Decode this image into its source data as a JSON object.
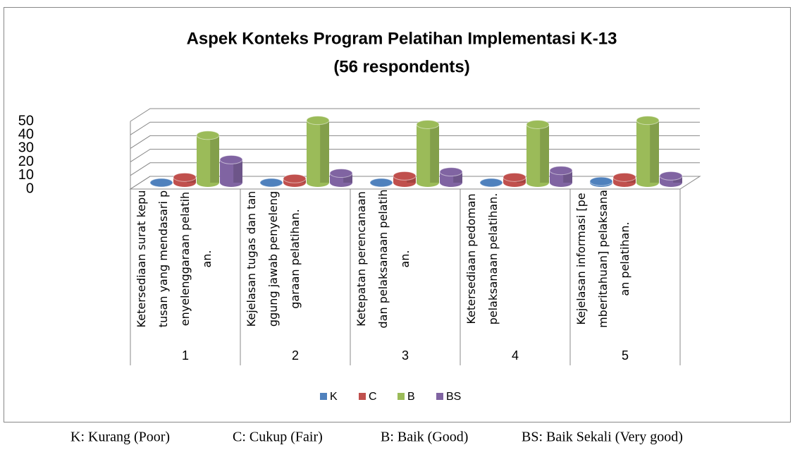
{
  "chart_data": {
    "type": "bar3d",
    "title": "Aspek Konteks Program Pelatihan Implementasi K-13",
    "subtitle": "(56 respondents)",
    "groups": [
      "1",
      "2",
      "3",
      "4",
      "5"
    ],
    "categories": [
      "Ketersediaan surat keputusan yang mendasari penyelenggaraan pelatihan.",
      "Kejelasan tugas dan tanggung jawab penyelenggaraan pelatihan.",
      "Ketepatan perencanaan dan pelaksanaan pelatihan.",
      "Ketersediaan pedoman pelaksanaan pelatihan.",
      "Kejelasan informasi [pemberitahuan] pelaksanaan pelatihan."
    ],
    "series": [
      {
        "name": "K",
        "color": "#4f81bd",
        "values": [
          0,
          0,
          0,
          0,
          1
        ]
      },
      {
        "name": "C",
        "color": "#c0504d",
        "values": [
          4,
          3,
          5,
          4,
          4
        ]
      },
      {
        "name": "B",
        "color": "#9bbb59",
        "values": [
          35,
          46,
          43,
          43,
          46
        ]
      },
      {
        "name": "BS",
        "color": "#8064a2",
        "values": [
          17,
          7,
          8,
          9,
          5
        ]
      }
    ],
    "ylim": [
      0,
      50
    ],
    "yticks": [
      0,
      10,
      20,
      30,
      40,
      50
    ],
    "grid": true,
    "legend": "bottom",
    "footnote": [
      "K: Kurang (Poor)",
      "C: Cukup (Fair)",
      "B: Baik (Good)",
      "BS: Baik Sekali (Very good)"
    ]
  }
}
